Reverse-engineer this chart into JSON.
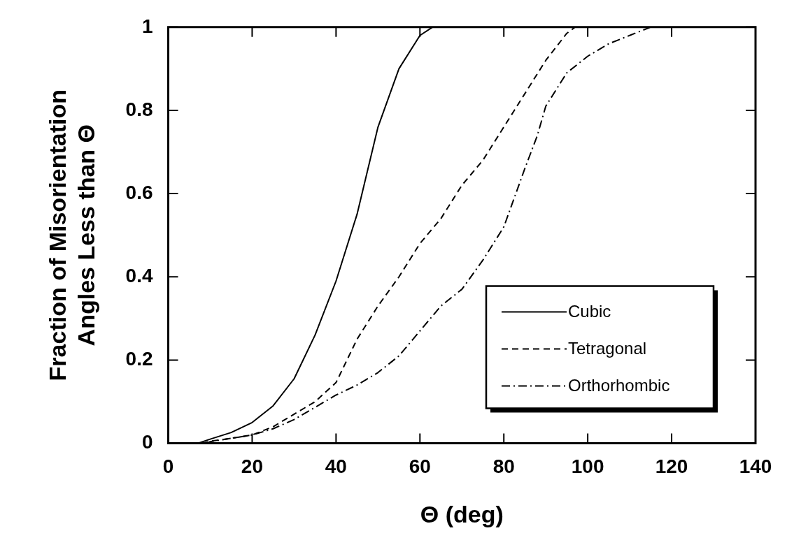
{
  "chart_data": {
    "type": "line",
    "xlabel": "Θ (deg)",
    "ylabel": "Fraction of Misorientation\nAngles Less than Θ",
    "xlim": [
      0,
      140
    ],
    "xticks": [
      0,
      20,
      40,
      60,
      80,
      100,
      120,
      140
    ],
    "ylim": [
      0,
      1
    ],
    "yticks": [
      0,
      0.2,
      0.4,
      0.6,
      0.8,
      1
    ],
    "grid": false,
    "legend": "bottom right",
    "marker": "none",
    "series": [
      {
        "name": "Cubic",
        "color": "#000000",
        "line_style": "solid",
        "x": [
          7,
          10,
          15,
          20,
          25,
          30,
          35,
          40,
          45,
          50,
          55,
          60,
          63
        ],
        "values": [
          0,
          0.01,
          0.026,
          0.05,
          0.09,
          0.155,
          0.26,
          0.39,
          0.55,
          0.76,
          0.9,
          0.98,
          1
        ]
      },
      {
        "name": "Tetragonal",
        "color": "#000000",
        "line_style": "dashed",
        "x": [
          8,
          10,
          15,
          20,
          25,
          30,
          35,
          40,
          45,
          50,
          55,
          60,
          65,
          70,
          75,
          80,
          85,
          90,
          95,
          97
        ],
        "values": [
          0,
          0.005,
          0.012,
          0.02,
          0.04,
          0.07,
          0.1,
          0.146,
          0.25,
          0.33,
          0.4,
          0.48,
          0.54,
          0.62,
          0.68,
          0.76,
          0.84,
          0.92,
          0.985,
          1
        ]
      },
      {
        "name": "Orthorhombic",
        "color": "#000000",
        "line_style": "dashdot",
        "x": [
          9,
          10,
          15,
          20,
          25,
          30,
          40,
          45,
          50,
          55,
          60,
          65,
          70,
          75,
          80,
          85,
          88,
          90,
          95,
          100,
          105,
          110,
          115
        ],
        "values": [
          0,
          0.004,
          0.012,
          0.02,
          0.035,
          0.057,
          0.116,
          0.14,
          0.17,
          0.21,
          0.27,
          0.33,
          0.37,
          0.44,
          0.52,
          0.66,
          0.74,
          0.81,
          0.89,
          0.93,
          0.96,
          0.98,
          1
        ]
      }
    ]
  }
}
